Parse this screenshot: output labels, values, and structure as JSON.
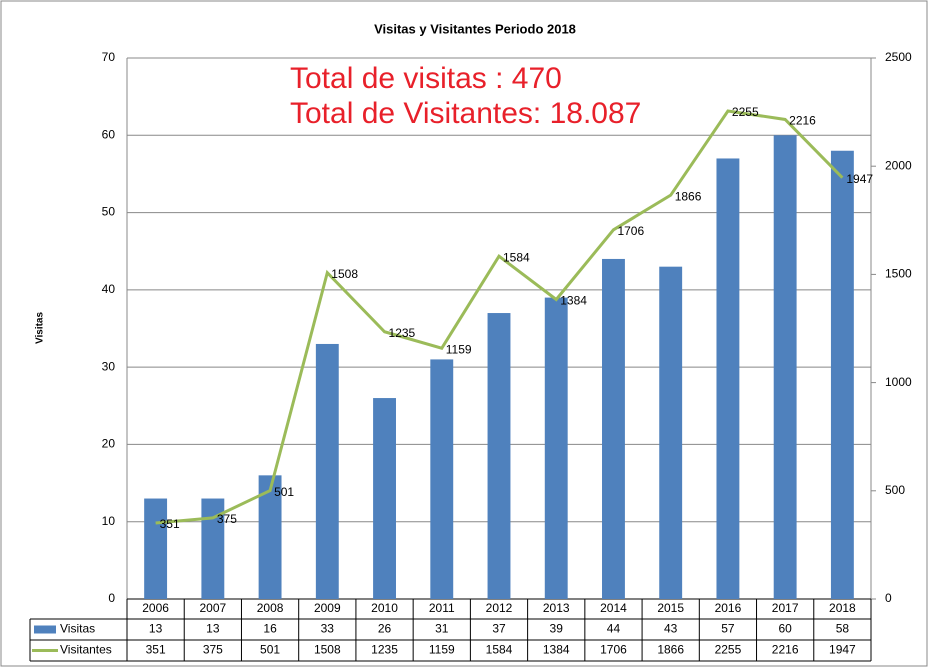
{
  "chart_data": {
    "type": "bar",
    "title": "Visitas y Visitantes Periodo 2018",
    "ylabel": "Visitas",
    "annotations": [
      "Total de visitas : 470",
      "Total de Visitantes: 18.087"
    ],
    "categories": [
      "2006",
      "2007",
      "2008",
      "2009",
      "2010",
      "2011",
      "2012",
      "2013",
      "2014",
      "2015",
      "2016",
      "2017",
      "2018"
    ],
    "series": [
      {
        "name": "Visitas",
        "type": "bar",
        "color": "#4f81bd",
        "values": [
          13,
          13,
          16,
          33,
          26,
          31,
          37,
          39,
          44,
          43,
          57,
          60,
          58
        ]
      },
      {
        "name": "Visitantes",
        "type": "line",
        "axis": "y2",
        "color": "#9bbb59",
        "values": [
          351,
          375,
          501,
          1508,
          1235,
          1159,
          1584,
          1384,
          1706,
          1866,
          2255,
          2216,
          1947
        ]
      }
    ],
    "ylim": [
      0,
      70
    ],
    "yticks": [
      0,
      10,
      20,
      30,
      40,
      50,
      60,
      70
    ],
    "y2lim": [
      0,
      2500
    ],
    "y2ticks": [
      0,
      500,
      1000,
      1500,
      2000,
      2500
    ],
    "grid": true,
    "data_table": true
  }
}
